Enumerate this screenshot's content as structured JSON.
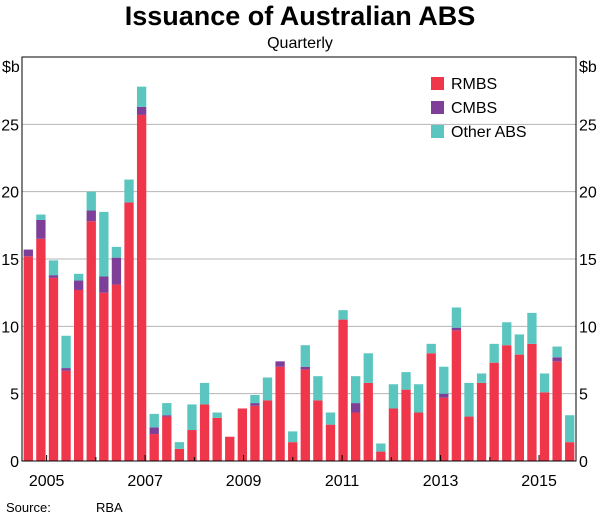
{
  "chart_data": {
    "type": "bar",
    "stacked": true,
    "title": "Issuance of Australian ABS",
    "subtitle": "Quarterly",
    "ylabel_left": "$b",
    "ylabel_right": "$b",
    "ylim": [
      0,
      30
    ],
    "yticks": [
      0,
      5,
      10,
      15,
      20,
      25
    ],
    "x_start_year": 2004.5,
    "x_end_year": 2015.75,
    "xticks": [
      {
        "label": "2005",
        "year": 2005
      },
      {
        "label": "2007",
        "year": 2007
      },
      {
        "label": "2009",
        "year": 2009
      },
      {
        "label": "2011",
        "year": 2011
      },
      {
        "label": "2013",
        "year": 2013
      },
      {
        "label": "2015",
        "year": 2015
      }
    ],
    "legend": [
      "RMBS",
      "CMBS",
      "Other ABS"
    ],
    "colors": {
      "RMBS": "#f0364b",
      "CMBS": "#7e3f98",
      "Other ABS": "#5bc6c0"
    },
    "series": [
      {
        "name": "RMBS",
        "values": [
          15.2,
          16.5,
          13.6,
          6.7,
          12.7,
          17.8,
          12.5,
          13.1,
          19.2,
          25.7,
          2.0,
          3.3,
          0.9,
          2.3,
          4.2,
          3.2,
          1.8,
          3.9,
          4.1,
          4.5,
          7.0,
          1.4,
          6.8,
          4.5,
          2.7,
          10.5,
          3.6,
          5.8,
          0.7,
          3.9,
          5.3,
          3.6,
          8.0,
          4.7,
          9.7,
          3.3,
          5.8,
          7.3,
          8.6,
          7.9,
          8.7,
          5.1,
          7.4,
          1.4
        ]
      },
      {
        "name": "CMBS",
        "values": [
          0.5,
          1.4,
          0.2,
          0.2,
          0.7,
          0.8,
          1.2,
          2.0,
          0.0,
          0.6,
          0.5,
          0.1,
          0.0,
          0.0,
          0.0,
          0.0,
          0.0,
          0.0,
          0.2,
          0.0,
          0.4,
          0.0,
          0.2,
          0.0,
          0.0,
          0.0,
          0.7,
          0.0,
          0.0,
          0.0,
          0.0,
          0.0,
          0.0,
          0.3,
          0.2,
          0.0,
          0.0,
          0.0,
          0.0,
          0.0,
          0.0,
          0.0,
          0.3,
          0.0
        ]
      },
      {
        "name": "Other ABS",
        "values": [
          0.0,
          0.4,
          1.1,
          2.4,
          0.5,
          1.4,
          4.8,
          0.8,
          1.7,
          1.5,
          1.0,
          0.9,
          0.5,
          1.9,
          1.6,
          0.4,
          0.0,
          0.0,
          0.6,
          1.7,
          0.0,
          0.8,
          1.6,
          1.8,
          0.9,
          0.7,
          2.0,
          2.2,
          0.6,
          1.8,
          1.3,
          2.1,
          0.7,
          2.0,
          1.5,
          2.5,
          0.7,
          1.4,
          1.7,
          1.5,
          2.3,
          1.4,
          0.8,
          2.0
        ]
      }
    ],
    "source_label": "Source:",
    "source_value": "RBA"
  }
}
